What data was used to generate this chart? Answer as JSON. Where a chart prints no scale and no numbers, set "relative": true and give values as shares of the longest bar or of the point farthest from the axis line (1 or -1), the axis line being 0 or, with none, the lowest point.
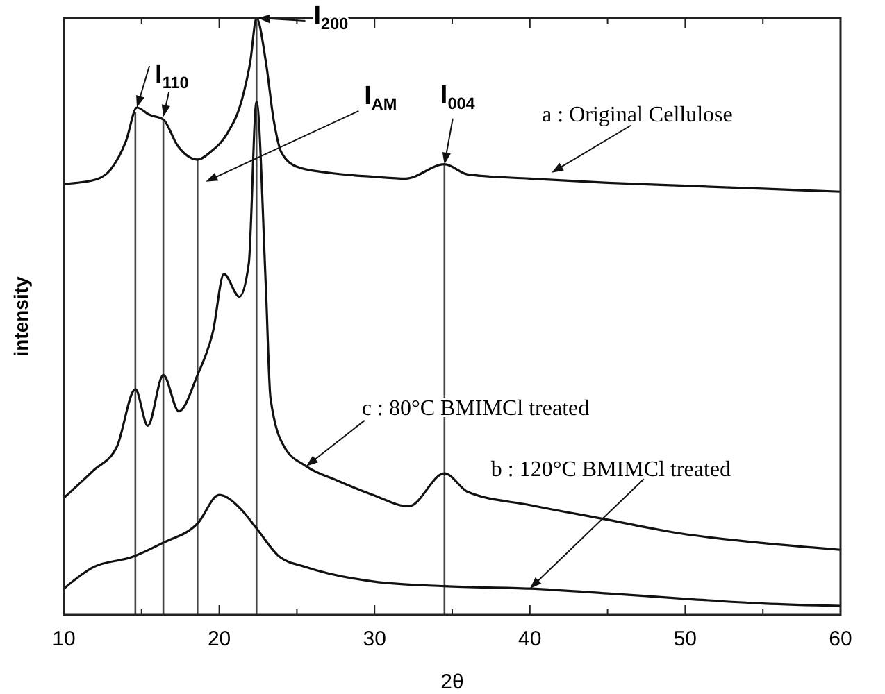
{
  "chart_data": {
    "type": "line",
    "xlabel": "2θ",
    "ylabel": "intensity",
    "relative": true,
    "xlim": [
      10,
      60
    ],
    "xticks": [
      10,
      {
        "value": 15,
        "label": null
      },
      20,
      {
        "value": 25,
        "label": null
      },
      30,
      {
        "value": 35,
        "label": null
      },
      40,
      {
        "value": 45,
        "label": null
      },
      50,
      {
        "value": 55,
        "label": null
      },
      60
    ],
    "grid": false,
    "marker": "none",
    "line_style": "solid",
    "series": [
      {
        "color": "#111111",
        "x": [
          10,
          12,
          13,
          14,
          14.7,
          15.5,
          16.4,
          17.3,
          18.6,
          19.5,
          20.5,
          21.5,
          22,
          22.4,
          23,
          23.5,
          24,
          25,
          27,
          30,
          32,
          34.5,
          36,
          40,
          45,
          50,
          55,
          60
        ],
        "values": [
          0.722,
          0.729,
          0.746,
          0.794,
          0.85,
          0.838,
          0.83,
          0.787,
          0.763,
          0.777,
          0.806,
          0.867,
          0.927,
          1,
          0.927,
          0.83,
          0.775,
          0.751,
          0.741,
          0.734,
          0.731,
          0.755,
          0.738,
          0.731,
          0.724,
          0.719,
          0.714,
          0.709
        ]
      },
      {
        "color": "#111111",
        "x": [
          10,
          11.9,
          13.4,
          14.6,
          15.4,
          16.4,
          17.4,
          18.6,
          19.6,
          20.3,
          21.3,
          21.9,
          22.4,
          23,
          23.3,
          24.2,
          25.6,
          27.6,
          29.9,
          32.2,
          34.5,
          36,
          40,
          44.9,
          49.8,
          54.7,
          60
        ],
        "values": [
          0.196,
          0.242,
          0.281,
          0.378,
          0.317,
          0.402,
          0.341,
          0.402,
          0.475,
          0.571,
          0.533,
          0.588,
          0.86,
          0.55,
          0.363,
          0.281,
          0.249,
          0.225,
          0.201,
          0.182,
          0.237,
          0.206,
          0.184,
          0.16,
          0.136,
          0.121,
          0.109
        ]
      },
      {
        "color": "#111111",
        "x": [
          10,
          11.9,
          14.4,
          16.4,
          18.6,
          20,
          21.4,
          22.4,
          23.9,
          25.6,
          29.9,
          34.5,
          40,
          45,
          50,
          55,
          60
        ],
        "values": [
          0.044,
          0.08,
          0.097,
          0.121,
          0.153,
          0.201,
          0.177,
          0.145,
          0.097,
          0.08,
          0.056,
          0.048,
          0.044,
          0.036,
          0.027,
          0.019,
          0.015
        ]
      }
    ],
    "ref_lines": [
      {
        "axis": "x",
        "value": 14.6,
        "color": "#444444"
      },
      {
        "axis": "x",
        "value": 16.4,
        "color": "#444444"
      },
      {
        "axis": "x",
        "value": 18.6,
        "color": "#444444"
      },
      {
        "axis": "x",
        "value": 22.4,
        "color": "#444444"
      },
      {
        "axis": "x",
        "value": 34.5,
        "color": "#444444"
      }
    ],
    "annotations": [
      {
        "text": "I$_{110}$",
        "x": 14.7,
        "y": 0.85
      },
      {
        "text": "I$_{200}$",
        "x": 22.5,
        "y": 1
      },
      "I$_{AM}$",
      {
        "text": "I$_{004}$",
        "x": 34.5,
        "y": 0.755
      },
      {
        "text": "a : Original Cellulose",
        "x": 41.4,
        "y": 0.741
      },
      {
        "text": "c : 80°C  BMIMCl treated",
        "x": 25.6,
        "y": 0.249
      },
      {
        "text": "b : 120°C  BMIMCl treated",
        "x": 40,
        "y": 0.044
      }
    ]
  }
}
